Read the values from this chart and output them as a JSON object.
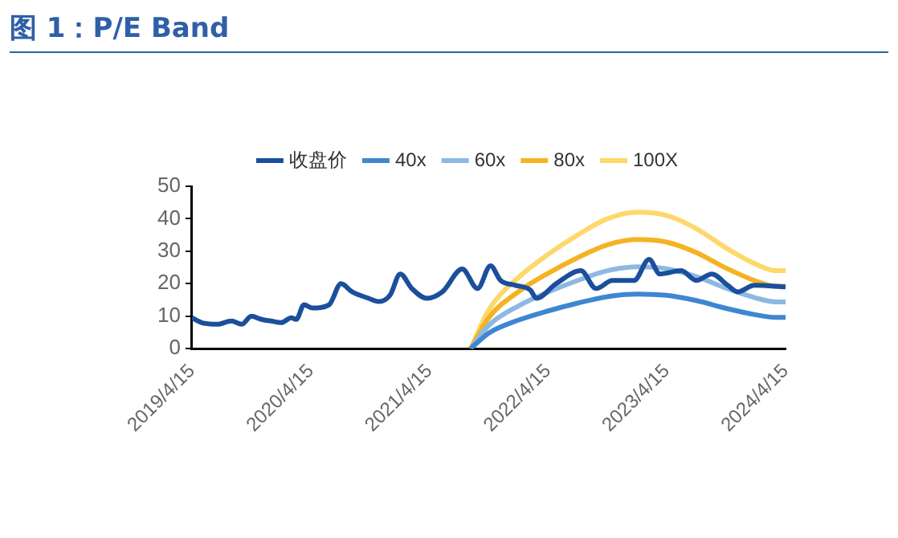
{
  "chart_data": {
    "type": "line",
    "title": "图 1：P/E Band",
    "legend": "top",
    "grid": false,
    "marker": "none",
    "line_style": "solid",
    "xlim": [
      "2019-04-15",
      "2024-04-15"
    ],
    "xticks": [
      {
        "value": "2019-04-15",
        "label": "2019/4/15"
      },
      {
        "value": "2020-04-15",
        "label": "2020/4/15"
      },
      {
        "value": "2021-04-15",
        "label": "2021/4/15"
      },
      {
        "value": "2022-04-15",
        "label": "2022/4/15"
      },
      {
        "value": "2023-04-15",
        "label": "2023/4/15"
      },
      {
        "value": "2024-04-15",
        "label": "2024/4/15"
      }
    ],
    "ylim": [
      0,
      50
    ],
    "yticks": [
      0,
      10,
      20,
      30,
      40,
      50
    ],
    "series": [
      {
        "name": "收盘价",
        "color": "#1b4f9c",
        "x": [
          "2019-04-15",
          "2019-05-15",
          "2019-07-01",
          "2019-08-15",
          "2019-09-15",
          "2019-10-15",
          "2019-11-15",
          "2019-12-15",
          "2020-01-15",
          "2020-02-15",
          "2020-03-01",
          "2020-03-25",
          "2020-04-20",
          "2020-06-10",
          "2020-07-17",
          "2020-08-20",
          "2020-10-10",
          "2020-11-10",
          "2020-12-15",
          "2021-01-15",
          "2021-02-20",
          "2021-04-07",
          "2021-05-25",
          "2021-07-25",
          "2021-09-10",
          "2021-10-20",
          "2021-11-20",
          "2022-01-05",
          "2022-02-20",
          "2022-03-10",
          "2022-05-10",
          "2022-07-25",
          "2022-09-10",
          "2022-10-30",
          "2023-01-05",
          "2023-02-20",
          "2023-03-25",
          "2023-05-30",
          "2023-07-15",
          "2023-09-01",
          "2023-10-20",
          "2023-11-20",
          "2024-01-10",
          "2024-04-15"
        ],
        "values": [
          9.5,
          8,
          7.5,
          8.5,
          7.5,
          10,
          9,
          8.5,
          8,
          9.5,
          9,
          13.5,
          12.5,
          13.5,
          20,
          17.5,
          15.5,
          14.5,
          16.5,
          23,
          18.5,
          15.5,
          17.5,
          24.5,
          18.5,
          25.5,
          21,
          19.5,
          18,
          15.5,
          20,
          24,
          18.5,
          21,
          21,
          27.5,
          23,
          24,
          21,
          23,
          19.5,
          17.5,
          19.5,
          19
        ]
      },
      {
        "name": "40x",
        "color": "#3f86d0",
        "x": [
          "2021-08-20",
          "2021-10-15",
          "2022-01-15",
          "2022-04-15",
          "2022-07-15",
          "2022-10-15",
          "2023-01-15",
          "2023-04-15",
          "2023-07-15",
          "2023-10-15",
          "2024-01-15",
          "2024-03-15",
          "2024-04-15"
        ],
        "values": [
          0,
          4.8,
          8.8,
          11.6,
          14,
          16,
          16.8,
          16.4,
          14.8,
          12.4,
          10.4,
          9.6,
          9.6
        ]
      },
      {
        "name": "60x",
        "color": "#8db8e3",
        "x": [
          "2021-08-20",
          "2021-10-15",
          "2022-01-15",
          "2022-04-15",
          "2022-07-15",
          "2022-10-15",
          "2023-01-15",
          "2023-04-15",
          "2023-07-15",
          "2023-10-15",
          "2024-01-15",
          "2024-03-15",
          "2024-04-15"
        ],
        "values": [
          0,
          7.2,
          13.2,
          17.4,
          21,
          24,
          25.2,
          24.6,
          22.2,
          18.6,
          15.6,
          14.4,
          14.4
        ]
      },
      {
        "name": "80x",
        "color": "#f5b323",
        "x": [
          "2021-08-20",
          "2021-10-15",
          "2022-01-15",
          "2022-04-15",
          "2022-07-15",
          "2022-10-15",
          "2023-01-15",
          "2023-04-15",
          "2023-07-15",
          "2023-10-15",
          "2024-01-15",
          "2024-03-15",
          "2024-04-15"
        ],
        "values": [
          0,
          9.6,
          17.6,
          23.2,
          28,
          32,
          33.6,
          32.8,
          29.6,
          24.8,
          20.8,
          19.2,
          19.2
        ]
      },
      {
        "name": "100X",
        "color": "#fdd86a",
        "x": [
          "2021-08-20",
          "2021-10-15",
          "2022-01-15",
          "2022-04-15",
          "2022-07-15",
          "2022-10-15",
          "2023-01-15",
          "2023-04-15",
          "2023-07-15",
          "2023-10-15",
          "2024-01-15",
          "2024-03-15",
          "2024-04-15"
        ],
        "values": [
          0,
          12,
          22,
          29,
          35,
          40,
          42,
          41,
          37,
          31,
          26,
          24,
          24
        ]
      }
    ]
  }
}
